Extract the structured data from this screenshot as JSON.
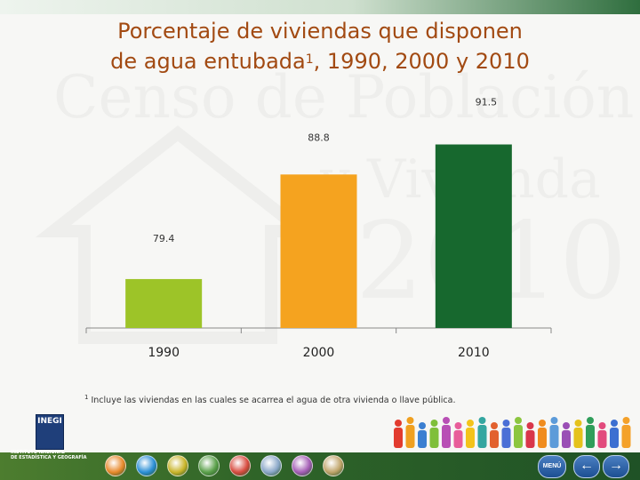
{
  "title": {
    "line1": "Porcentaje de viviendas que disponen",
    "line2_main": "de agua entubada",
    "line2_sup": "1",
    "line2_rest": ", 1990, 2000 y 2010"
  },
  "watermark": {
    "line1": "Censo de Población",
    "line2": "y Vivienda",
    "year": "2010"
  },
  "chart_data": {
    "type": "bar",
    "title": "Porcentaje de viviendas que disponen de agua entubada1, 1990, 2000 y 2010",
    "categories": [
      "1990",
      "2000",
      "2010"
    ],
    "values": [
      79.4,
      88.8,
      91.5
    ],
    "value_labels": [
      "79.4",
      "88.8",
      "91.5"
    ],
    "colors": [
      "#9dc428",
      "#f5a31f",
      "#17682e"
    ],
    "ylim": [
      75,
      92.5
    ],
    "grid": false,
    "legend": "none"
  },
  "footnote": {
    "sup": "1",
    "text": " Incluye las viviendas en las cuales se acarrea el agua de otra vivienda o llave pública."
  },
  "logo": {
    "name": "INEGI",
    "line1": "INSTITUTO NACIONAL",
    "line2": "DE ESTADÍSTICA Y GEOGRAFÍA"
  },
  "nav": {
    "menu_label": "MENÚ",
    "back_glyph": "←",
    "forward_glyph": "→",
    "icon_colors": [
      "#e8892b",
      "#2b8fd6",
      "#c9b52a",
      "#5aa04a",
      "#d84b3f",
      "#8aa7c8",
      "#a45db5",
      "#c0a46a"
    ]
  },
  "people_colors": [
    "#e23b2e",
    "#f0a020",
    "#3b7fd1",
    "#7fbf3a",
    "#b84fb5",
    "#e85d9a",
    "#f3c31a",
    "#34a6a0",
    "#e2612e",
    "#4b6fd6",
    "#8cc63f",
    "#d9364a",
    "#f08c1e",
    "#5c9bd9",
    "#9a4fb5",
    "#e5c21b",
    "#2f9e5a",
    "#e24b7d",
    "#3c6fd1",
    "#f4a12a"
  ]
}
